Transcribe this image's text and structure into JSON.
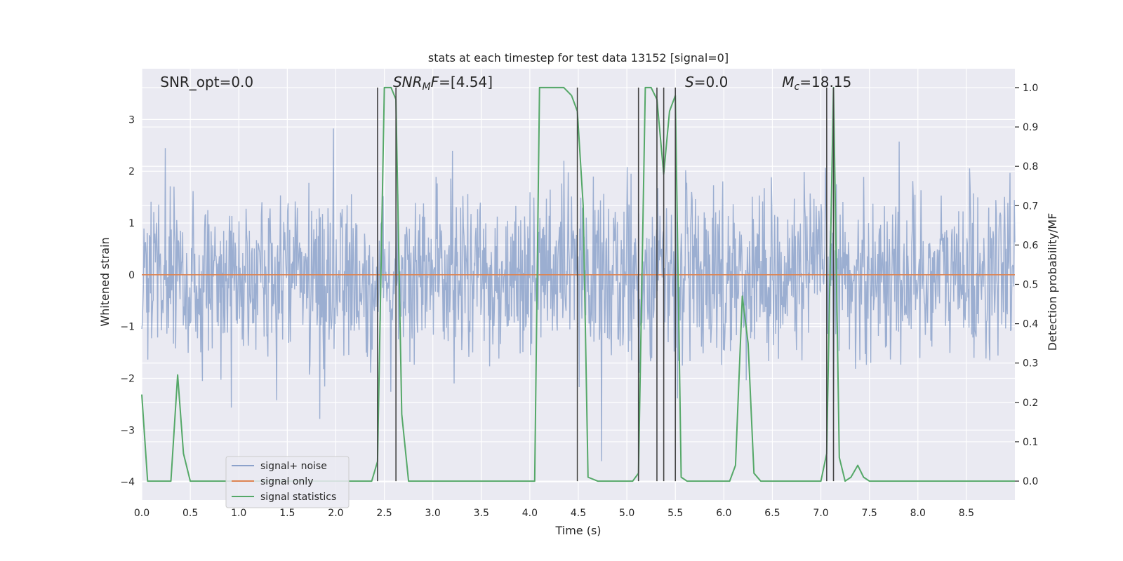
{
  "chart_data": {
    "type": "line",
    "title": "stats at each timestep for test data 13152 [signal=0]",
    "xlabel": "Time (s)",
    "ylabel_left": "Whitened strain",
    "ylabel_right": "Detection probability/MF",
    "xlim": [
      0,
      9.0
    ],
    "ylim_left": [
      -4.35,
      3.98
    ],
    "ylim_right": [
      -0.048,
      1.048
    ],
    "xticks": [
      0.0,
      0.5,
      1.0,
      1.5,
      2.0,
      2.5,
      3.0,
      3.5,
      4.0,
      4.5,
      5.0,
      5.5,
      6.0,
      6.5,
      7.0,
      7.5,
      8.0,
      8.5
    ],
    "xtick_labels": [
      "0.0",
      "0.5",
      "1.0",
      "1.5",
      "2.0",
      "2.5",
      "3.0",
      "3.5",
      "4.0",
      "4.5",
      "5.0",
      "5.5",
      "6.0",
      "6.5",
      "7.0",
      "7.5",
      "8.0",
      "8.5"
    ],
    "yticks_left": [
      -4,
      -3,
      -2,
      -1,
      0,
      1,
      2,
      3
    ],
    "ytick_labels_left": [
      "−4",
      "−3",
      "−2",
      "−1",
      "0",
      "1",
      "2",
      "3"
    ],
    "yticks_right": [
      0.0,
      0.1,
      0.2,
      0.3,
      0.4,
      0.5,
      0.6,
      0.7,
      0.8,
      0.9,
      1.0
    ],
    "ytick_labels_right": [
      "0.0",
      "0.1",
      "0.2",
      "0.3",
      "0.4",
      "0.5",
      "0.6",
      "0.7",
      "0.8",
      "0.9",
      "1.0"
    ],
    "grid": true,
    "legend_placement": "lower-left",
    "annotations": [
      {
        "label": "SNR_opt=0.0",
        "x": 0.19
      },
      {
        "label": "SNR_MF=[4.54]",
        "x": 2.59,
        "base": "SNR",
        "sub": "M",
        "rest": "F=[4.54]"
      },
      {
        "label": "S=0.0",
        "x": 5.6,
        "base": "S",
        "rest": "=0.0"
      },
      {
        "label": "M_c=18.15",
        "x": 6.6,
        "base": "M",
        "sub": "c",
        "rest": "=18.15"
      }
    ],
    "vlines_x": [
      2.43,
      2.62,
      4.49,
      5.12,
      5.31,
      5.38,
      5.5,
      7.06,
      7.13
    ],
    "series": [
      {
        "name": "signal+ noise",
        "color": "#4c72b0",
        "axis": "left",
        "n_points": 1600,
        "envelope_std": 0.82,
        "seed": 13152
      },
      {
        "name": "signal only",
        "color": "#dd8452",
        "axis": "left",
        "x": [
          0,
          9.0
        ],
        "y": [
          0,
          0
        ]
      },
      {
        "name": "signal statistics",
        "color": "#55a868",
        "axis": "right",
        "x": [
          0.0,
          0.06,
          0.12,
          0.2,
          0.3,
          0.37,
          0.43,
          0.5,
          0.6,
          1.0,
          1.5,
          2.0,
          2.37,
          2.43,
          2.5,
          2.57,
          2.62,
          2.68,
          2.75,
          2.8,
          3.0,
          3.5,
          4.0,
          4.05,
          4.1,
          4.2,
          4.35,
          4.43,
          4.49,
          4.55,
          4.6,
          4.7,
          4.8,
          5.0,
          5.06,
          5.12,
          5.19,
          5.25,
          5.31,
          5.38,
          5.44,
          5.5,
          5.56,
          5.62,
          5.7,
          5.9,
          6.06,
          6.12,
          6.19,
          6.25,
          6.31,
          6.38,
          6.5,
          7.0,
          7.06,
          7.13,
          7.19,
          7.25,
          7.31,
          7.38,
          7.44,
          7.5,
          7.56,
          7.62,
          7.7,
          8.0,
          8.5,
          9.0
        ],
        "y": [
          0.22,
          0.0,
          0.0,
          0.0,
          0.0,
          0.27,
          0.07,
          0.0,
          0.0,
          0.0,
          0.0,
          0.0,
          0.0,
          0.05,
          1.0,
          1.0,
          0.97,
          0.17,
          0.0,
          0.0,
          0.0,
          0.0,
          0.0,
          0.0,
          1.0,
          1.0,
          1.0,
          0.98,
          0.94,
          0.7,
          0.01,
          0.0,
          0.0,
          0.0,
          0.0,
          0.02,
          1.0,
          1.0,
          0.97,
          0.78,
          0.94,
          0.98,
          0.01,
          0.0,
          0.0,
          0.0,
          0.0,
          0.04,
          0.47,
          0.35,
          0.02,
          0.0,
          0.0,
          0.0,
          0.07,
          1.0,
          0.06,
          0.0,
          0.01,
          0.04,
          0.01,
          0.0,
          0.0,
          0.0,
          0.0,
          0.0,
          0.0,
          0.0
        ]
      }
    ]
  },
  "colors": {
    "plot_background": "#eaeaf2",
    "grid": "#ffffff",
    "vline": "#444444"
  }
}
